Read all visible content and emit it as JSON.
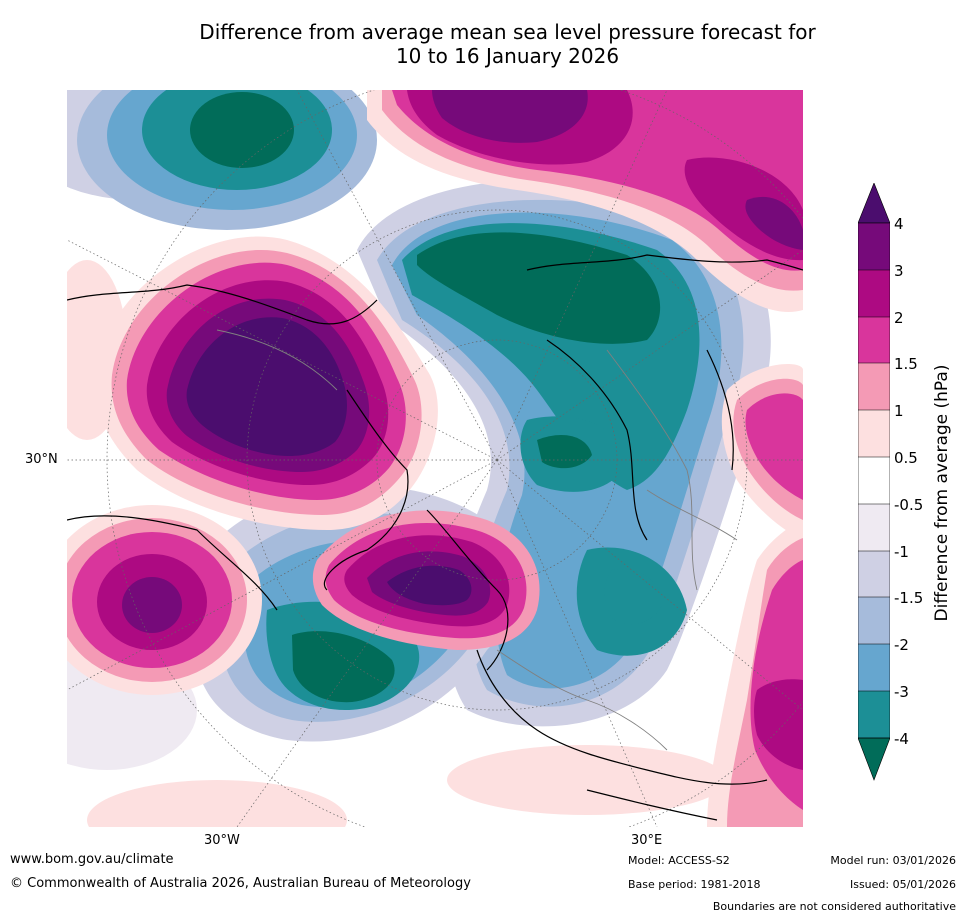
{
  "title": {
    "line1": "Difference from average mean sea level pressure forecast for",
    "line2": "10 to 16 January 2026"
  },
  "map": {
    "projection": "north polar stereographic",
    "lat_label": "30°N",
    "lon_labels": [
      "30°W",
      "30°E"
    ]
  },
  "colorbar": {
    "title": "Difference from average (hPa)",
    "ticks": [
      "4",
      "3",
      "2",
      "1.5",
      "1",
      "0.5",
      "-0.5",
      "-1",
      "-1.5",
      "-2",
      "-3",
      "-4"
    ],
    "colors": {
      "above_4": "#4b0d6e",
      "3_to_4": "#760a7a",
      "2_to_3": "#ad0a82",
      "1.5_to_2": "#d9359c",
      "1_to_1.5": "#f49ab5",
      "0.5_to_1": "#fde0e0",
      "neutral": "#ffffff",
      "m1_to_m0.5": "#efeaf2",
      "m1.5_to_m1": "#cfd0e4",
      "m2_to_m1.5": "#a6bbdb",
      "m3_to_m2": "#66a6cf",
      "m4_to_m3": "#1c8f96",
      "below_m4": "#016c59"
    }
  },
  "footer": {
    "url": "www.bom.gov.au/climate",
    "copyright": "© Commonwealth of Australia 2026, Australian Bureau of Meteorology",
    "model": "Model: ACCESS-S2",
    "base_period": "Base period: 1981-2018",
    "model_run": "Model run: 03/01/2026",
    "issued": "Issued: 05/01/2026",
    "disclaimer": "Boundaries are not considered authoritative"
  }
}
